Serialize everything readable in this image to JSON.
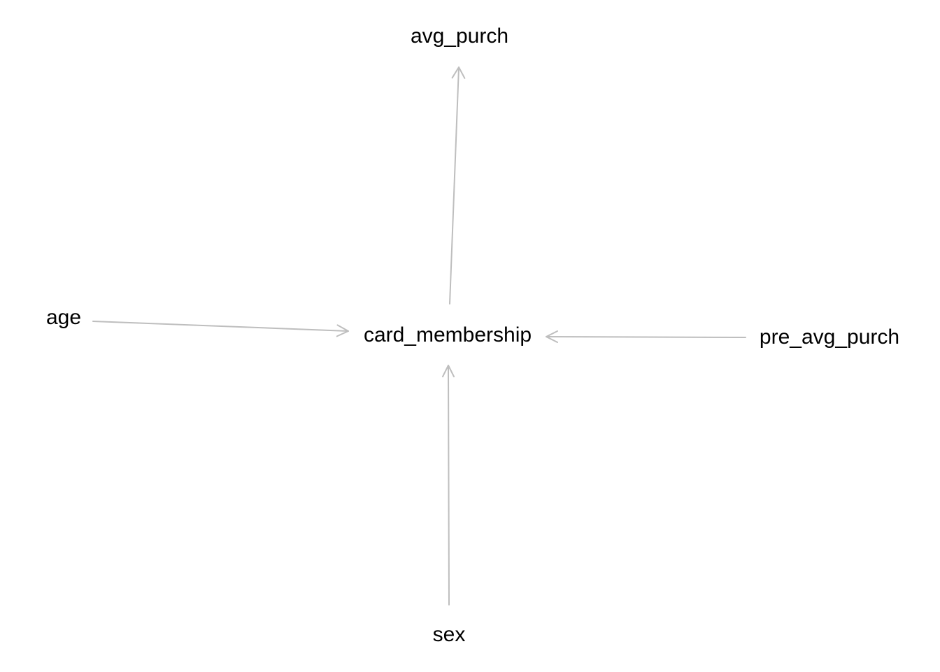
{
  "diagram": {
    "type": "directed-acyclic-graph",
    "edge_color": "#bebebe",
    "text_color": "#000000",
    "nodes": {
      "avg_purch": "avg_purch",
      "card_membership": "card_membership",
      "age": "age",
      "pre_avg_purch": "pre_avg_purch",
      "sex": "sex"
    },
    "edges": [
      {
        "from": "card_membership",
        "to": "avg_purch"
      },
      {
        "from": "age",
        "to": "card_membership"
      },
      {
        "from": "pre_avg_purch",
        "to": "card_membership"
      },
      {
        "from": "sex",
        "to": "card_membership"
      }
    ]
  }
}
